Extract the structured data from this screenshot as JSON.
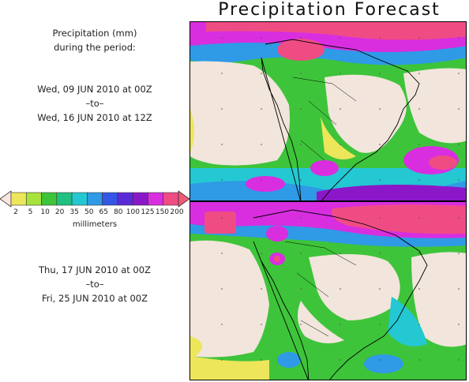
{
  "title": "Precipitation Forecast",
  "period_label": {
    "line1": "Precipitation (mm)",
    "line2": "during the period:"
  },
  "periods": [
    {
      "start": "Wed, 09 JUN 2010 at 00Z",
      "sep": "–to–",
      "end": "Wed, 16 JUN 2010 at 12Z"
    },
    {
      "start": "Thu, 17 JUN 2010 at 00Z",
      "sep": "–to–",
      "end": "Fri, 25 JUN 2010 at 00Z"
    }
  ],
  "legend": {
    "unit": "millimeters",
    "ticks": [
      "2",
      "5",
      "10",
      "20",
      "35",
      "50",
      "65",
      "80",
      "100",
      "125",
      "150",
      "200"
    ],
    "colors": [
      "#ede65a",
      "#a8e23c",
      "#3ec43a",
      "#20c080",
      "#24c8d2",
      "#2f9ae6",
      "#3456e6",
      "#5a2ad8",
      "#8a18c8",
      "#d82ee0",
      "#f04c84"
    ],
    "low_arrow_color": "#fbe5dc",
    "high_arrow_color": "#f05a78"
  },
  "map_colors": {
    "dry": "#f1e5dc",
    "yellow": "#ede65a",
    "lightgreen": "#a8e23c",
    "green": "#3ec43a",
    "teal": "#20c080",
    "cyan": "#24c8d2",
    "blue": "#2f9ae6",
    "purple": "#8a18c8",
    "magenta": "#d82ee0",
    "red": "#f04c84",
    "coast": "#000000"
  }
}
